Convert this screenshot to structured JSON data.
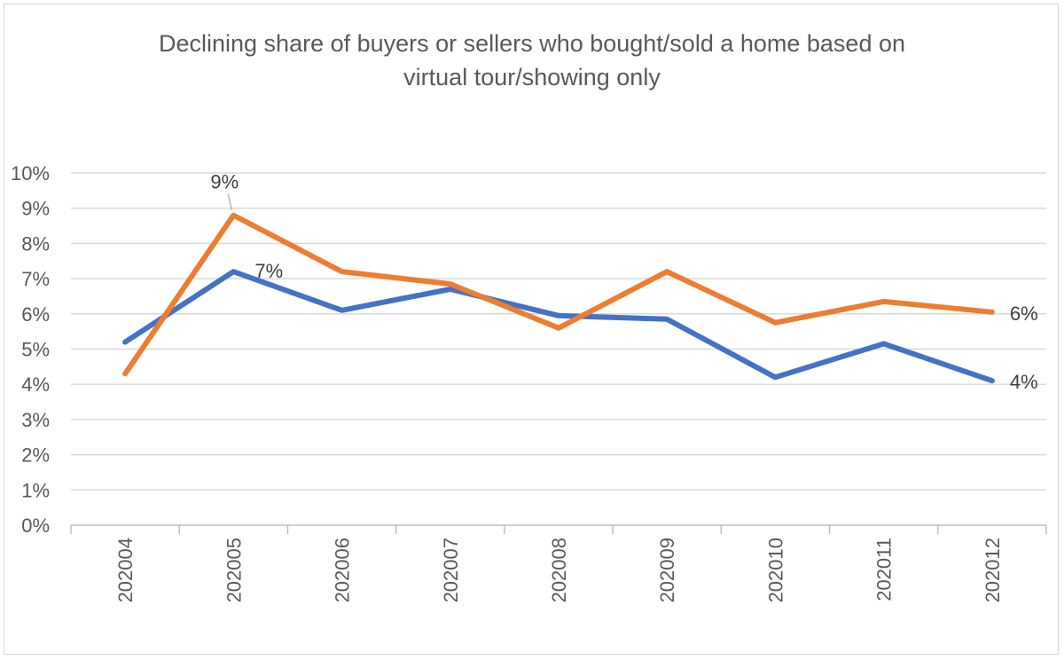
{
  "chart_data": {
    "type": "line",
    "title_lines": [
      "Declining share of buyers or sellers who bought/sold a home based on",
      "virtual tour/showing only"
    ],
    "xlabel": "",
    "ylabel": "",
    "categories": [
      "202004",
      "202005",
      "202006",
      "202007",
      "202008",
      "202009",
      "202010",
      "202011",
      "202012"
    ],
    "y_ticks": [
      "0%",
      "1%",
      "2%",
      "3%",
      "4%",
      "5%",
      "6%",
      "7%",
      "8%",
      "9%",
      "10%"
    ],
    "ylim": [
      0,
      10
    ],
    "grid": true,
    "legend": "none",
    "series": [
      {
        "color": "#4472C4",
        "values": [
          5.2,
          7.2,
          6.1,
          6.7,
          5.95,
          5.85,
          4.2,
          5.15,
          4.1
        ]
      },
      {
        "color": "#ED7D31",
        "values": [
          4.3,
          8.8,
          7.2,
          6.85,
          5.6,
          7.2,
          5.75,
          6.35,
          6.05
        ]
      }
    ],
    "data_labels": [
      {
        "series": 1,
        "index": 1,
        "text": "9%"
      },
      {
        "series": 0,
        "index": 1,
        "text": "7%"
      },
      {
        "series": 1,
        "index": 8,
        "text": "6%"
      },
      {
        "series": 0,
        "index": 8,
        "text": "4%"
      }
    ]
  }
}
